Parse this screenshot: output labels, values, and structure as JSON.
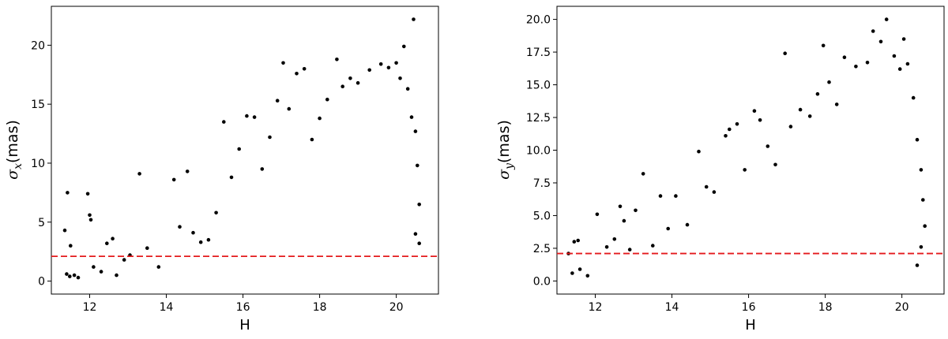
{
  "chart_data": [
    {
      "type": "scatter",
      "title": "",
      "xlabel": "H",
      "ylabel": "σ_x(mas)",
      "ylabel_symbol": "σ",
      "ylabel_subscript": "x",
      "ylabel_unit": "(mas)",
      "xlim": [
        11.0,
        21.1
      ],
      "ylim": [
        -1.1,
        23.3
      ],
      "xticks": [
        12,
        14,
        16,
        18,
        20
      ],
      "xtick_labels": [
        "12",
        "14",
        "16",
        "18",
        "20"
      ],
      "yticks": [
        0,
        5,
        10,
        15,
        20
      ],
      "ytick_labels": [
        "0",
        "5",
        "10",
        "15",
        "20"
      ],
      "grid": false,
      "legend": "none",
      "marker_color": "#000000",
      "reference_line": {
        "y": 2.1,
        "style": "dashed",
        "color": "#e41a1c"
      },
      "series": [
        {
          "points": [
            [
              11.35,
              4.3
            ],
            [
              11.42,
              7.5
            ],
            [
              11.5,
              3.0
            ],
            [
              11.4,
              0.6
            ],
            [
              11.48,
              0.4
            ],
            [
              11.6,
              0.5
            ],
            [
              11.7,
              0.3
            ],
            [
              11.95,
              7.4
            ],
            [
              12.0,
              5.6
            ],
            [
              12.03,
              5.2
            ],
            [
              12.1,
              1.2
            ],
            [
              12.3,
              0.8
            ],
            [
              12.45,
              3.2
            ],
            [
              12.6,
              3.6
            ],
            [
              12.7,
              0.5
            ],
            [
              12.9,
              1.8
            ],
            [
              13.05,
              2.2
            ],
            [
              13.3,
              9.1
            ],
            [
              13.5,
              2.8
            ],
            [
              13.8,
              1.2
            ],
            [
              14.2,
              8.6
            ],
            [
              14.35,
              4.6
            ],
            [
              14.55,
              9.3
            ],
            [
              14.7,
              4.1
            ],
            [
              14.9,
              3.3
            ],
            [
              15.1,
              3.5
            ],
            [
              15.3,
              5.8
            ],
            [
              15.5,
              13.5
            ],
            [
              15.7,
              8.8
            ],
            [
              15.9,
              11.2
            ],
            [
              16.1,
              14.0
            ],
            [
              16.3,
              13.9
            ],
            [
              16.5,
              9.5
            ],
            [
              16.7,
              12.2
            ],
            [
              16.9,
              15.3
            ],
            [
              17.05,
              18.5
            ],
            [
              17.2,
              14.6
            ],
            [
              17.4,
              17.6
            ],
            [
              17.6,
              18.0
            ],
            [
              17.8,
              12.0
            ],
            [
              18.0,
              13.8
            ],
            [
              18.2,
              15.4
            ],
            [
              18.45,
              18.8
            ],
            [
              18.6,
              16.5
            ],
            [
              18.8,
              17.2
            ],
            [
              19.0,
              16.8
            ],
            [
              19.3,
              17.9
            ],
            [
              19.6,
              18.4
            ],
            [
              19.8,
              18.1
            ],
            [
              20.0,
              18.5
            ],
            [
              20.1,
              17.2
            ],
            [
              20.2,
              19.9
            ],
            [
              20.45,
              22.2
            ],
            [
              20.3,
              16.3
            ],
            [
              20.4,
              13.9
            ],
            [
              20.5,
              12.7
            ],
            [
              20.55,
              9.8
            ],
            [
              20.6,
              6.5
            ],
            [
              20.5,
              4.0
            ],
            [
              20.6,
              3.2
            ]
          ]
        }
      ]
    },
    {
      "type": "scatter",
      "title": "",
      "xlabel": "H",
      "ylabel": "σ_y(mas)",
      "ylabel_symbol": "σ",
      "ylabel_subscript": "y",
      "ylabel_unit": "(mas)",
      "xlim": [
        11.0,
        21.1
      ],
      "ylim": [
        -1.0,
        21.0
      ],
      "xticks": [
        12,
        14,
        16,
        18,
        20
      ],
      "xtick_labels": [
        "12",
        "14",
        "16",
        "18",
        "20"
      ],
      "yticks": [
        0.0,
        2.5,
        5.0,
        7.5,
        10.0,
        12.5,
        15.0,
        17.5,
        20.0
      ],
      "ytick_labels": [
        "0.0",
        "2.5",
        "5.0",
        "7.5",
        "10.0",
        "12.5",
        "15.0",
        "17.5",
        "20.0"
      ],
      "grid": false,
      "legend": "none",
      "marker_color": "#000000",
      "reference_line": {
        "y": 2.1,
        "style": "dashed",
        "color": "#e41a1c"
      },
      "series": [
        {
          "points": [
            [
              11.3,
              2.1
            ],
            [
              11.45,
              3.0
            ],
            [
              11.55,
              3.1
            ],
            [
              11.4,
              0.6
            ],
            [
              11.6,
              0.9
            ],
            [
              11.8,
              0.4
            ],
            [
              12.05,
              5.1
            ],
            [
              12.3,
              2.6
            ],
            [
              12.5,
              3.2
            ],
            [
              12.65,
              5.7
            ],
            [
              12.75,
              4.6
            ],
            [
              12.9,
              2.4
            ],
            [
              13.05,
              5.4
            ],
            [
              13.25,
              8.2
            ],
            [
              13.5,
              2.7
            ],
            [
              13.7,
              6.5
            ],
            [
              13.9,
              4.0
            ],
            [
              14.1,
              6.5
            ],
            [
              14.4,
              4.3
            ],
            [
              14.7,
              9.9
            ],
            [
              14.9,
              7.2
            ],
            [
              15.1,
              6.8
            ],
            [
              15.4,
              11.1
            ],
            [
              15.5,
              11.6
            ],
            [
              15.7,
              12.0
            ],
            [
              15.9,
              8.5
            ],
            [
              16.15,
              13.0
            ],
            [
              16.3,
              12.3
            ],
            [
              16.5,
              10.3
            ],
            [
              16.7,
              8.9
            ],
            [
              16.95,
              17.4
            ],
            [
              17.1,
              11.8
            ],
            [
              17.35,
              13.1
            ],
            [
              17.6,
              12.6
            ],
            [
              17.8,
              14.3
            ],
            [
              17.95,
              18.0
            ],
            [
              18.1,
              15.2
            ],
            [
              18.3,
              13.5
            ],
            [
              18.5,
              17.1
            ],
            [
              18.8,
              16.4
            ],
            [
              19.1,
              16.7
            ],
            [
              19.25,
              19.1
            ],
            [
              19.45,
              18.3
            ],
            [
              19.6,
              20.0
            ],
            [
              19.8,
              17.2
            ],
            [
              19.95,
              16.2
            ],
            [
              20.05,
              18.5
            ],
            [
              20.15,
              16.6
            ],
            [
              20.3,
              14.0
            ],
            [
              20.4,
              10.8
            ],
            [
              20.5,
              8.5
            ],
            [
              20.55,
              6.2
            ],
            [
              20.6,
              4.2
            ],
            [
              20.5,
              2.6
            ],
            [
              20.4,
              1.2
            ]
          ]
        }
      ]
    }
  ]
}
